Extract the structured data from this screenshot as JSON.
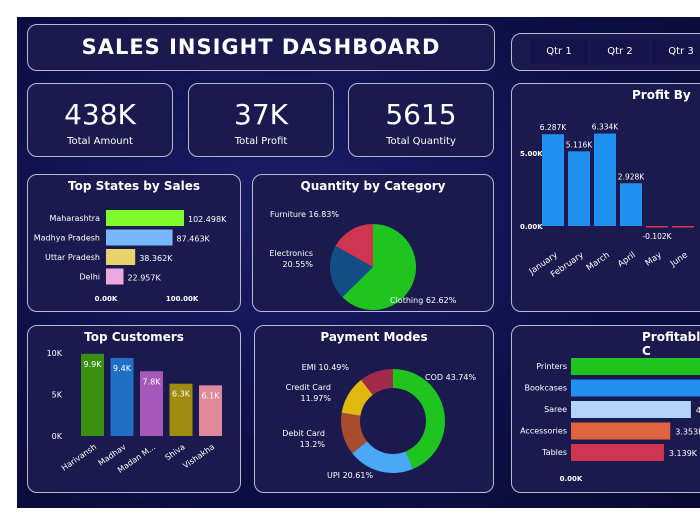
{
  "header": {
    "title": "SALES INSIGHT DASHBOARD"
  },
  "slicer": {
    "options": [
      "Qtr 1",
      "Qtr 2",
      "Qtr 3"
    ]
  },
  "kpis": [
    {
      "value": "438K",
      "label": "Total Amount"
    },
    {
      "value": "37K",
      "label": "Total Profit"
    },
    {
      "value": "5615",
      "label": "Total Quantity"
    }
  ],
  "chart_data": [
    {
      "id": "states",
      "type": "bar",
      "orientation": "horizontal",
      "title": "Top States by Sales",
      "categories": [
        "Maharashtra",
        "Madhya Pradesh",
        "Uttar Pradesh",
        "Delhi"
      ],
      "values": [
        102.498,
        87.463,
        38.362,
        22.957
      ],
      "labels": [
        "102.498K",
        "87.463K",
        "38.362K",
        "22.957K"
      ],
      "colors": [
        "#7dfc2a",
        "#78b7fa",
        "#e8d26d",
        "#f0a7dc"
      ],
      "ticks": [
        "0.00K",
        "100.00K"
      ],
      "xlim": [
        0,
        100
      ]
    },
    {
      "id": "category",
      "type": "pie",
      "title": "Quantity by Category",
      "categories": [
        "Clothing",
        "Electronics",
        "Furniture"
      ],
      "values": [
        62.62,
        20.55,
        16.83
      ],
      "labels": [
        "Clothing 62.62%",
        "Electronics",
        "20.55%",
        "Furniture 16.83%"
      ],
      "colors": [
        "#1fc41f",
        "#134f86",
        "#cf3550"
      ]
    },
    {
      "id": "month",
      "type": "bar",
      "title": "Profit By",
      "categories": [
        "January",
        "February",
        "March",
        "April",
        "May",
        "June"
      ],
      "values": [
        6.287,
        5.116,
        6.334,
        2.928,
        -0.102,
        -0.1
      ],
      "labels": [
        "6.287K",
        "5.116K",
        "6.334K",
        "2.928K",
        "-0.102K",
        ""
      ],
      "ticks": [
        "0.00K",
        "5.00K"
      ],
      "colors": {
        "positive": "#1f8ff0",
        "negative": "#d9344f"
      }
    },
    {
      "id": "customers",
      "type": "bar",
      "title": "Top Customers",
      "categories": [
        "Harivansh",
        "Madhav",
        "Madan M...",
        "Shiva",
        "Vishakha"
      ],
      "values": [
        9.9,
        9.4,
        7.8,
        6.3,
        6.1
      ],
      "labels": [
        "9.9K",
        "9.4K",
        "7.8K",
        "6.3K",
        "6.1K"
      ],
      "colors": [
        "#3a9010",
        "#1f6fc4",
        "#a558b8",
        "#a08a10",
        "#e0899a"
      ],
      "ticks": [
        "0K",
        "5K",
        "10K"
      ],
      "ylim": [
        0,
        10
      ]
    },
    {
      "id": "payment",
      "type": "pie",
      "variant": "donut",
      "title": "Payment Modes",
      "categories": [
        "COD",
        "UPI",
        "Debit Card",
        "Credit Card",
        "EMI"
      ],
      "values": [
        43.74,
        20.61,
        13.2,
        11.97,
        10.49
      ],
      "labels": [
        "COD 43.74%",
        "UPI 20.61%",
        "Debit Card",
        "13.2%",
        "Credit Card",
        "11.97%",
        "EMI 10.49%"
      ],
      "colors": [
        "#1fc41f",
        "#4aa8f5",
        "#a84b2c",
        "#e0b80f",
        "#a12b48"
      ]
    },
    {
      "id": "profitable",
      "type": "bar",
      "orientation": "horizontal",
      "title": "Profitable C",
      "categories": [
        "Printers",
        "Bookcases",
        "Saree",
        "Accessories",
        "Tables"
      ],
      "values": [
        5.0,
        4.9,
        4.05,
        3.353,
        3.139
      ],
      "labels": [
        "",
        "",
        "4",
        "3.353K",
        "3.139K"
      ],
      "colors": [
        "#1fc41f",
        "#1f8ff0",
        "#b3d4fa",
        "#e0643e",
        "#cf3550"
      ],
      "ticks": [
        "0.00K"
      ]
    }
  ]
}
